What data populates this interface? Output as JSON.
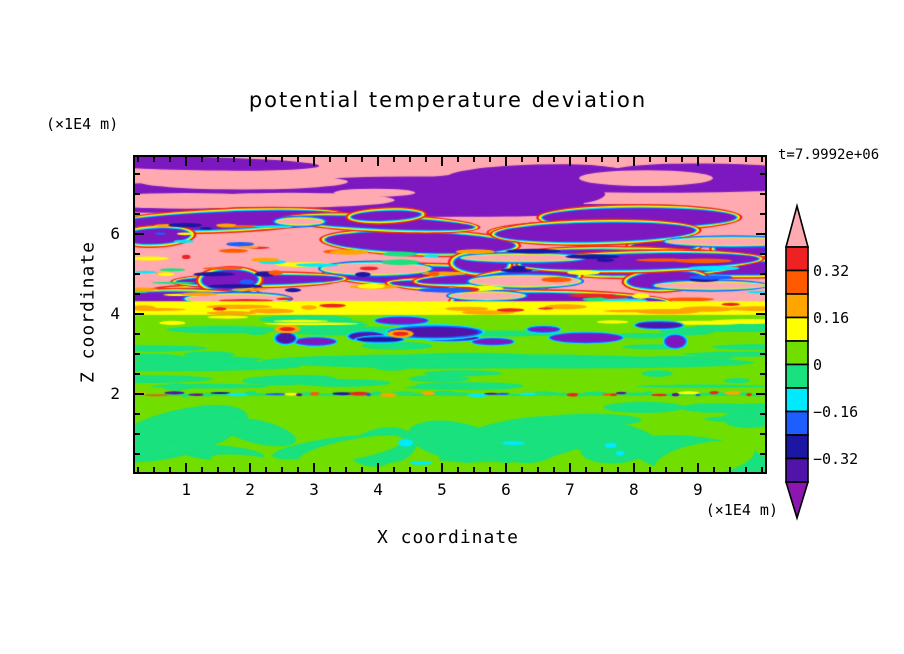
{
  "title": "potential temperature deviation",
  "timestamp": "t=7.9992e+06",
  "x_axis": {
    "label": "X coordinate",
    "unit_label": "(×1E4 m)",
    "range": [
      0.2,
      10.05
    ],
    "major_ticks": [
      1,
      2,
      3,
      4,
      5,
      6,
      7,
      8,
      9
    ],
    "minor_step": 0.25
  },
  "y_axis": {
    "label": "Z coordinate",
    "unit_label": "(×1E4 m)",
    "range": [
      0.05,
      7.93
    ],
    "major_ticks": [
      2,
      4,
      6
    ],
    "minor_step": 0.5
  },
  "colorbar": {
    "labels": [
      {
        "text": "0.32",
        "value": 0.32
      },
      {
        "text": "0.16",
        "value": 0.16
      },
      {
        "text": "0",
        "value": 0
      },
      {
        "text": "−0.16",
        "value": -0.16
      },
      {
        "text": "−0.32",
        "value": -0.32
      }
    ],
    "top_level": 0.4,
    "level_step": 0.08,
    "segment_colors": [
      "#ee2222",
      "#ff5a00",
      "#ffa500",
      "#ffff00",
      "#70df00",
      "#19e17d",
      "#00eaff",
      "#1e5eff",
      "#1b17a3",
      "#5014a8"
    ],
    "arrow_top_color": "#ffaab0",
    "arrow_bottom_color": "#8d15b0",
    "outline_color": "#000000"
  },
  "chart_data": {
    "type": "heatmap",
    "title": "potential temperature deviation",
    "xlabel": "X coordinate",
    "ylabel": "Z coordinate",
    "axis_units": "(×1E4 m)",
    "time_label": "t=7.9992e+06",
    "x_range": [
      0.2,
      10.05
    ],
    "z_range": [
      0.05,
      7.93
    ],
    "contour_levels": [
      -0.4,
      -0.32,
      -0.24,
      -0.16,
      -0.08,
      0,
      0.08,
      0.16,
      0.24,
      0.32,
      0.4
    ],
    "palette": {
      "pink": "#ffaab0",
      "red": "#ee2222",
      "orangered": "#ff5a00",
      "orange": "#ffa500",
      "yellow": "#ffff00",
      "green": "#70df00",
      "spring": "#19e17d",
      "cyan": "#00eaff",
      "blue": "#1e5eff",
      "navy": "#1b17a3",
      "indigo": "#5014a8",
      "purple": "#7d18c0"
    },
    "legend_position": "right",
    "grid": false,
    "regions": [
      {
        "z_range": [
          6.5,
          7.93
        ],
        "description": "pink field (deviation > 0.4) crossed by long wavy purple bands (deviation < -0.4)"
      },
      {
        "z_range": [
          4.3,
          6.5
        ],
        "description": "breaking-wave layer: interleaved pink and purple lobes separated by thin rainbow contour fringes (red/orange/yellow/green/cyan/blue)"
      },
      {
        "z_range": [
          4.0,
          4.3
        ],
        "description": "horizontal yellow band (0.08 to 0.16) with orange and red patches"
      },
      {
        "z_range": [
          2.05,
          4.0
        ],
        "description": "yellow-green field (0 to 0.08) with spring-green streaks and scattered dark negative blobs near z = 3.4-3.8"
      },
      {
        "z_range": [
          1.95,
          2.05
        ],
        "description": "sharp inversion line at z = 2 marked by short red/orange and navy/cyan streaks"
      },
      {
        "z_range": [
          0.05,
          1.95
        ],
        "description": "convective boundary layer: yellow-green with large spring-green plumes and a few cyan spots"
      }
    ]
  }
}
